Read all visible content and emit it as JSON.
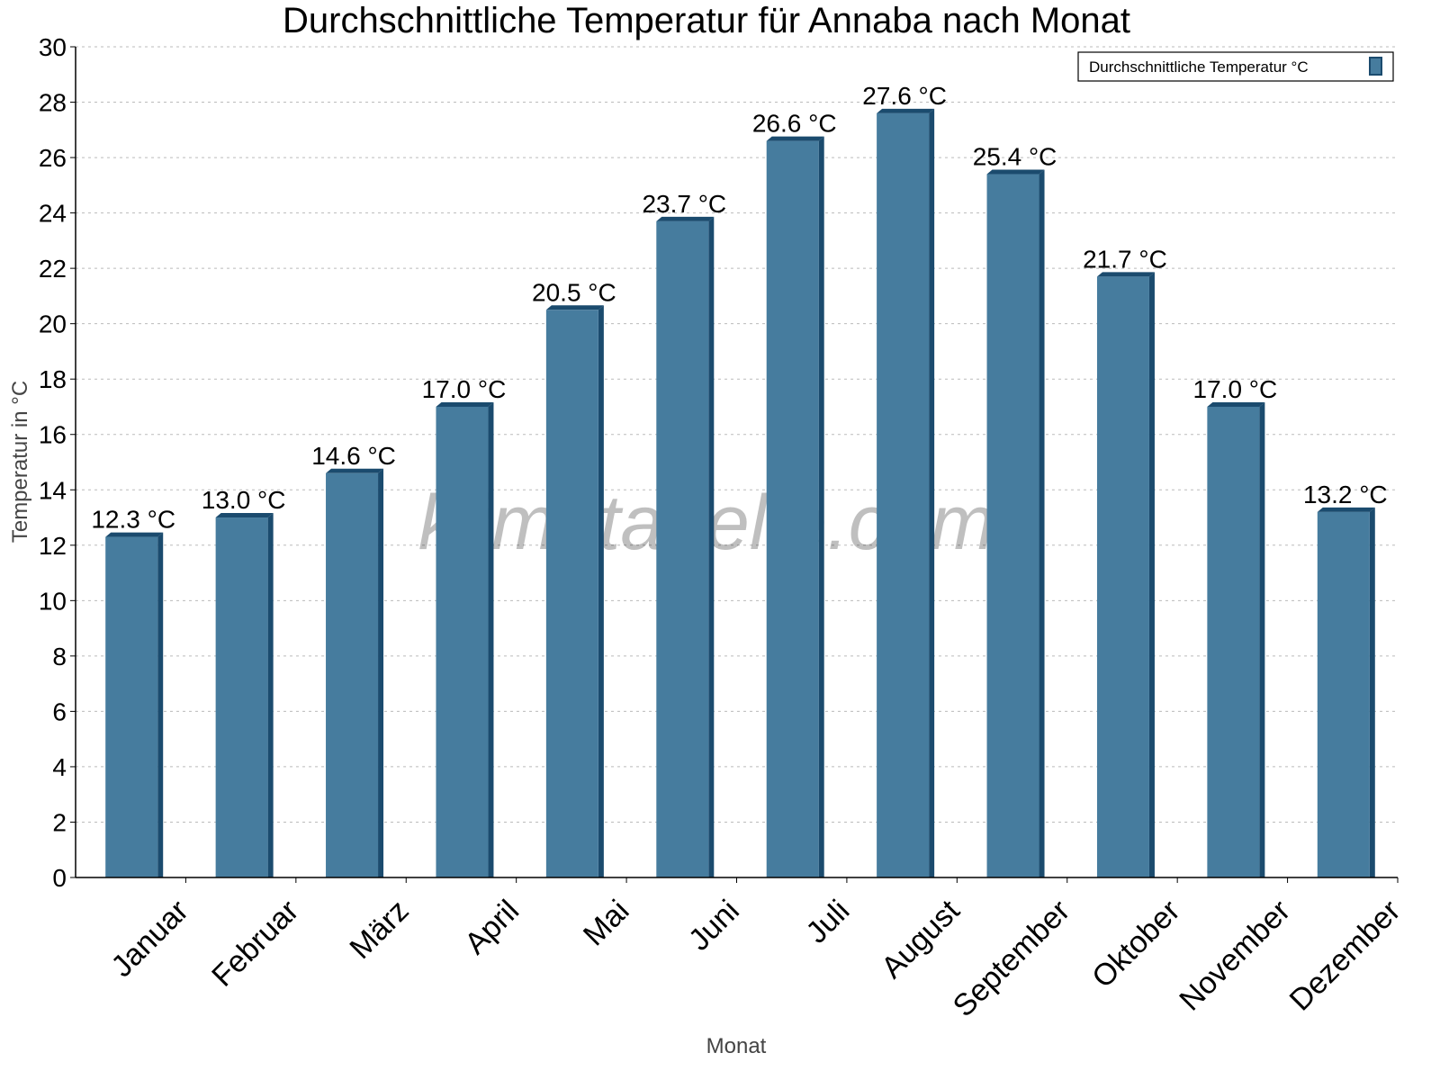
{
  "chart_data": {
    "type": "bar",
    "title": "Durchschnittliche Temperatur für Annaba nach Monat",
    "xlabel": "Monat",
    "ylabel": "Temperatur in °C",
    "categories": [
      "Januar",
      "Februar",
      "März",
      "April",
      "Mai",
      "Juni",
      "Juli",
      "August",
      "September",
      "Oktober",
      "November",
      "Dezember"
    ],
    "series": [
      {
        "name": "Durchschnittliche Temperatur °C",
        "values": [
          12.3,
          13.0,
          14.6,
          17.0,
          20.5,
          23.7,
          26.6,
          27.6,
          25.4,
          21.7,
          17.0,
          13.2
        ]
      }
    ],
    "data_labels": [
      "12.3 °C",
      "13.0 °C",
      "14.6 °C",
      "17.0 °C",
      "20.5 °C",
      "23.7 °C",
      "26.6 °C",
      "27.6 °C",
      "25.4 °C",
      "21.7 °C",
      "17.0 °C",
      "13.2 °C"
    ],
    "ylim": [
      0,
      30
    ],
    "yticks": [
      0,
      2,
      4,
      6,
      8,
      10,
      12,
      14,
      16,
      18,
      20,
      22,
      24,
      26,
      28,
      30
    ],
    "grid": true,
    "legend_position": "top-right",
    "colors": {
      "bar_face": "#467c9e",
      "bar_side": "#1b4b6e"
    },
    "watermark": "klimatabelle.com"
  }
}
